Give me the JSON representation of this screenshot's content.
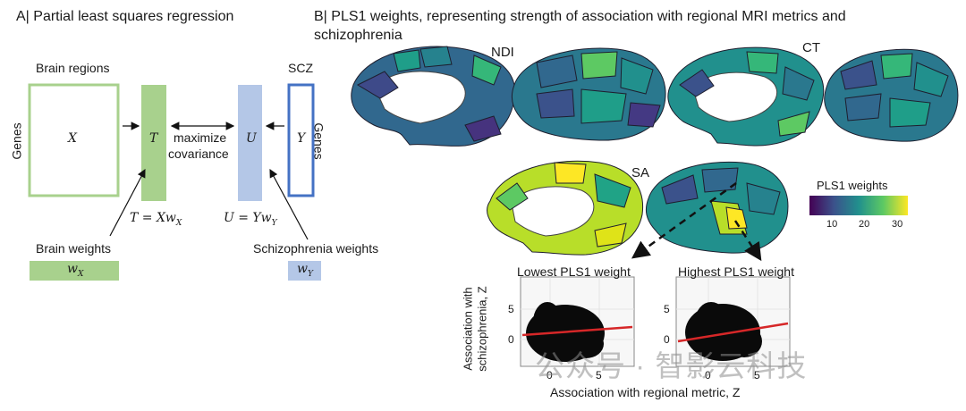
{
  "panel_a": {
    "title": "A| Partial least squares regression",
    "brain_regions": "Brain regions",
    "genes_left": "Genes",
    "matrix_x": "X",
    "matrix_t": "T",
    "maximize": "maximize",
    "covariance": "covariance",
    "matrix_u": "U",
    "matrix_y": "Y",
    "scz": "SCZ",
    "genes_right": "Genes",
    "eq_t": "T = Xw",
    "eq_t_sub": "X",
    "eq_u": "U = Yw",
    "eq_u_sub": "Y",
    "brain_weights": "Brain weights",
    "wx": "w",
    "wx_sub": "X",
    "scz_weights": "Schizophrenia weights",
    "wy": "w",
    "wy_sub": "Y"
  },
  "panel_b": {
    "title_line1": "B| PLS1 weights, representing strength of association with regional MRI metrics and",
    "title_line2": "schizophrenia",
    "ndi": "NDI",
    "ct": "CT",
    "sa": "SA",
    "colorbar": {
      "title": "PLS1 weights",
      "ticks": [
        "10",
        "20",
        "30"
      ],
      "colors": [
        "#440154",
        "#3b528b",
        "#21908d",
        "#5dc963",
        "#fde725"
      ]
    },
    "scatter_low_title": "Lowest PLS1 weight",
    "scatter_high_title": "Highest PLS1 weight",
    "ylabel_line1": "Association with",
    "ylabel_line2": "schizophrenia, Z",
    "xlabel": "Association with regional metric, Z",
    "y_ticks": [
      "5",
      "0"
    ],
    "x_ticks": [
      "0",
      "5"
    ]
  },
  "watermark": "公众号 · 智影云科技"
}
